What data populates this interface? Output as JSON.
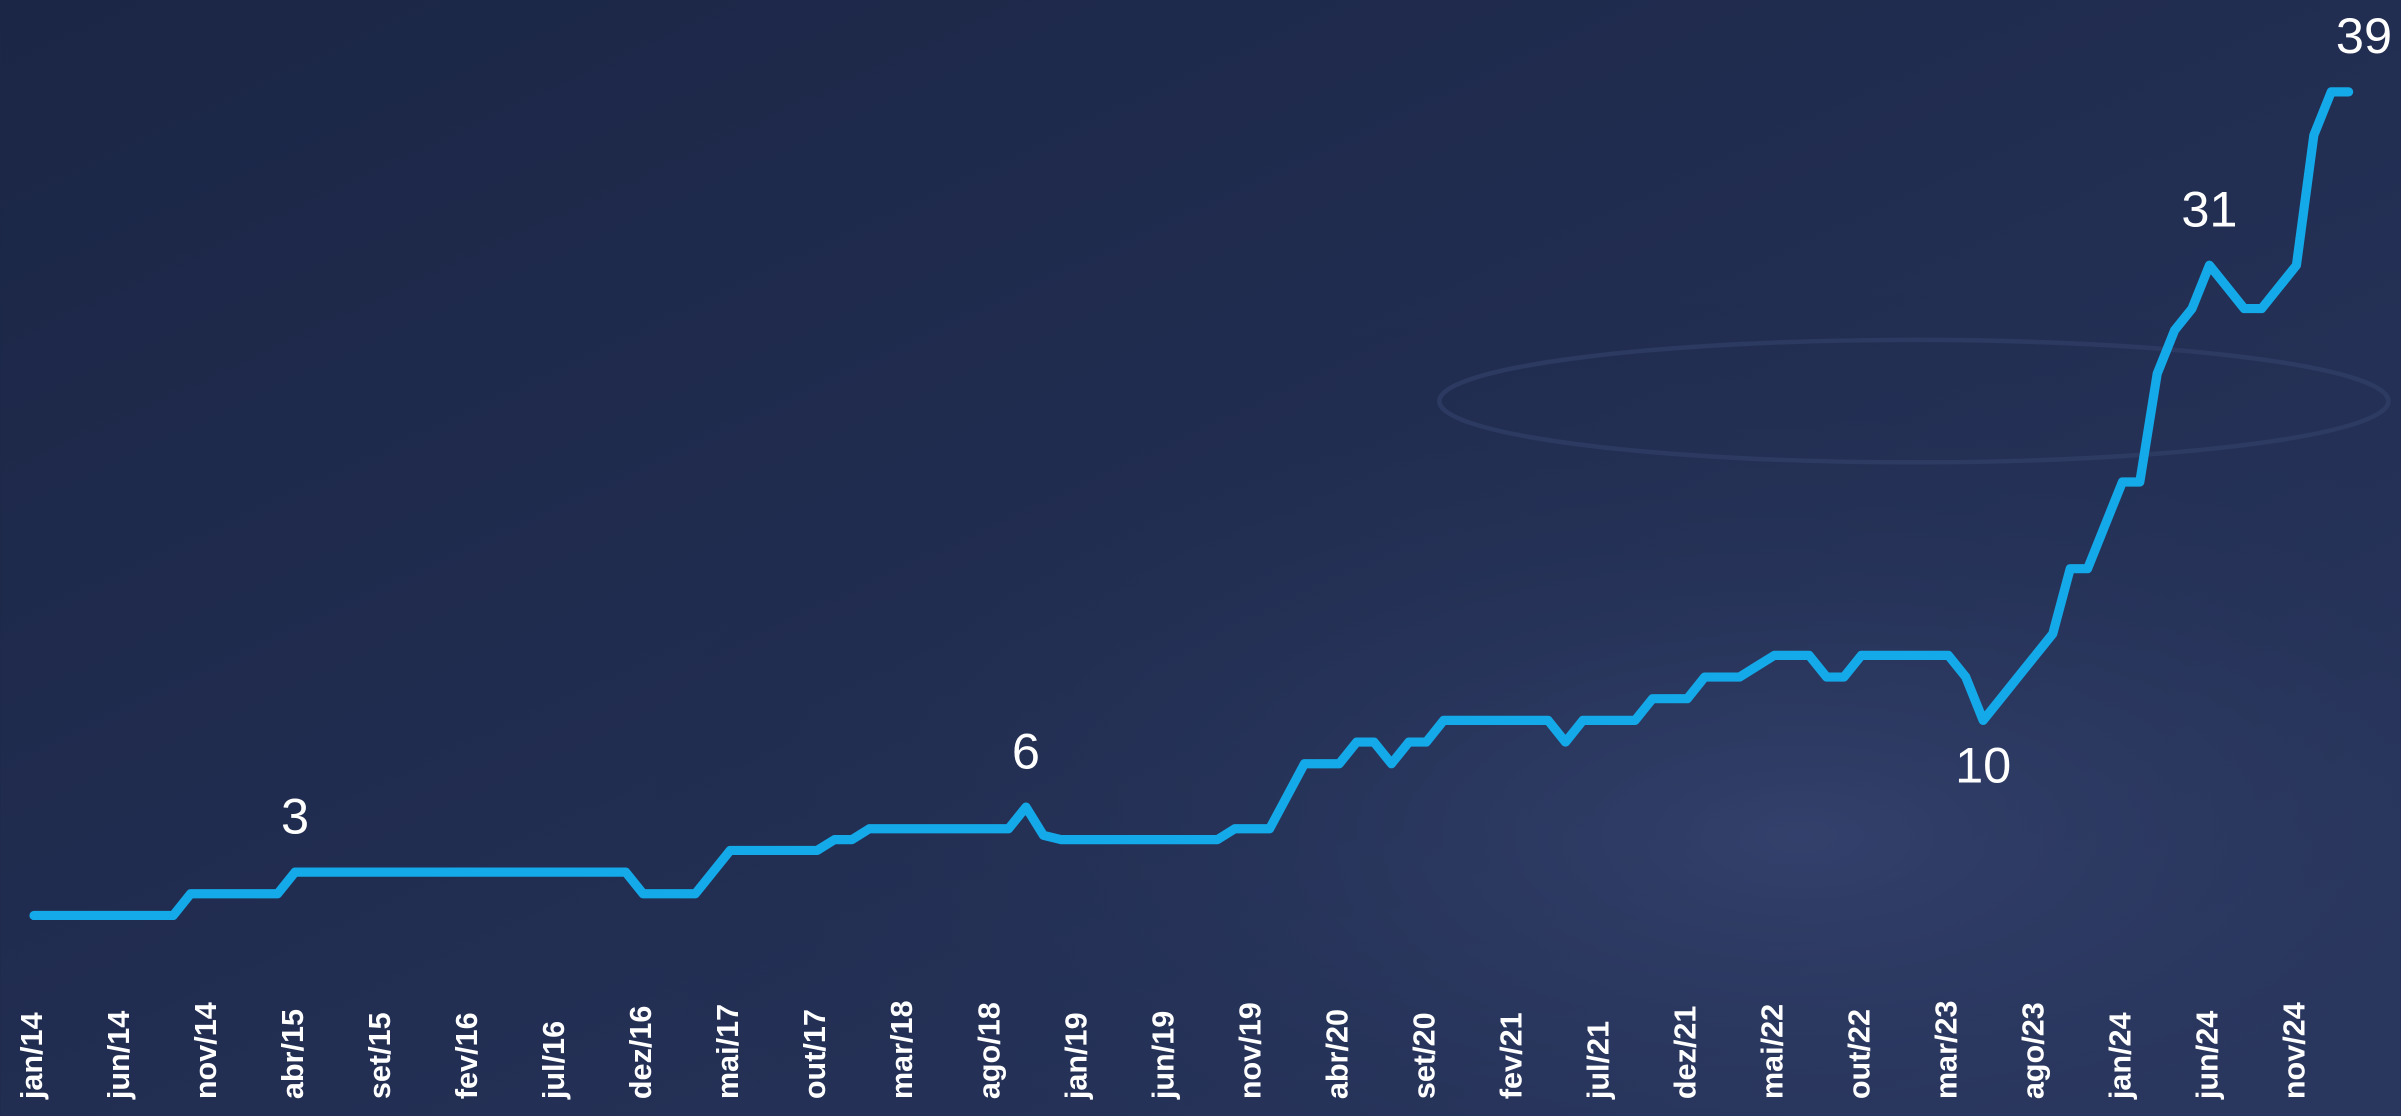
{
  "chart_data": {
    "type": "line",
    "categories": [
      "jan/14",
      null,
      null,
      null,
      null,
      "jun/14",
      null,
      null,
      null,
      null,
      "nov/14",
      null,
      null,
      null,
      null,
      "abr/15",
      null,
      null,
      null,
      null,
      "set/15",
      null,
      null,
      null,
      null,
      "fev/16",
      null,
      null,
      null,
      null,
      "jul/16",
      null,
      null,
      null,
      null,
      "dez/16",
      null,
      null,
      null,
      null,
      "mai/17",
      null,
      null,
      null,
      null,
      "out/17",
      null,
      null,
      null,
      null,
      "mar/18",
      null,
      null,
      null,
      null,
      "ago/18",
      null,
      null,
      null,
      null,
      "jan/19",
      null,
      null,
      null,
      null,
      "jun/19",
      null,
      null,
      null,
      null,
      "nov/19",
      null,
      null,
      null,
      null,
      "abr/20",
      null,
      null,
      null,
      null,
      "set/20",
      null,
      null,
      null,
      null,
      "fev/21",
      null,
      null,
      null,
      null,
      "jul/21",
      null,
      null,
      null,
      null,
      "dez/21",
      null,
      null,
      null,
      null,
      "mai/22",
      null,
      null,
      null,
      null,
      "out/22",
      null,
      null,
      null,
      null,
      "mar/23",
      null,
      null,
      null,
      null,
      "ago/23",
      null,
      null,
      null,
      null,
      "jan/24",
      null,
      null,
      null,
      null,
      "jun/24",
      null,
      null,
      null,
      null,
      "nov/24",
      null,
      null,
      null
    ],
    "values": [
      1,
      1,
      1,
      1,
      1,
      1,
      1,
      1,
      1,
      2,
      2,
      2,
      2,
      2,
      2,
      3,
      3,
      3,
      3,
      3,
      3,
      3,
      3,
      3,
      3,
      3,
      3,
      3,
      3,
      3,
      3,
      3,
      3,
      3,
      3,
      2,
      2,
      2,
      2,
      3,
      4,
      4,
      4,
      4,
      4,
      4,
      4.5,
      4.5,
      5,
      5,
      5,
      5,
      5,
      5,
      5,
      5,
      5,
      6,
      4.7,
      4.5,
      4.5,
      4.5,
      4.5,
      4.5,
      4.5,
      4.5,
      4.5,
      4.5,
      4.5,
      5,
      5,
      5,
      6.5,
      8,
      8,
      8,
      9,
      9,
      8,
      9,
      9,
      10,
      10,
      10,
      10,
      10,
      10,
      10,
      9,
      10,
      10,
      10,
      10,
      11,
      11,
      11,
      12,
      12,
      12,
      12.5,
      13,
      13,
      13,
      12,
      12,
      13,
      13,
      13,
      13,
      13,
      13,
      12,
      10,
      11,
      12,
      13,
      14,
      17,
      17,
      19,
      21,
      21,
      26,
      28,
      29,
      31,
      30,
      29,
      29,
      30,
      31,
      37,
      39,
      39
    ],
    "value_labels": [
      null,
      null,
      null,
      null,
      null,
      null,
      null,
      null,
      null,
      null,
      null,
      null,
      null,
      null,
      null,
      "3",
      null,
      null,
      null,
      null,
      null,
      null,
      null,
      null,
      null,
      null,
      null,
      null,
      null,
      null,
      null,
      null,
      null,
      null,
      null,
      null,
      null,
      null,
      null,
      null,
      null,
      null,
      null,
      null,
      null,
      null,
      null,
      null,
      null,
      null,
      null,
      null,
      null,
      null,
      null,
      null,
      null,
      "6",
      null,
      null,
      null,
      null,
      null,
      null,
      null,
      null,
      null,
      null,
      null,
      null,
      null,
      null,
      null,
      null,
      null,
      null,
      null,
      null,
      null,
      null,
      null,
      null,
      null,
      null,
      null,
      null,
      null,
      null,
      null,
      null,
      null,
      null,
      null,
      null,
      null,
      null,
      null,
      null,
      null,
      null,
      null,
      null,
      null,
      null,
      null,
      null,
      null,
      null,
      null,
      null,
      null,
      null,
      "10",
      null,
      null,
      null,
      null,
      null,
      null,
      null,
      null,
      null,
      null,
      null,
      null,
      "31",
      null,
      null,
      null,
      null,
      null,
      null,
      null,
      "39"
    ],
    "color": "#14a9e8"
  }
}
